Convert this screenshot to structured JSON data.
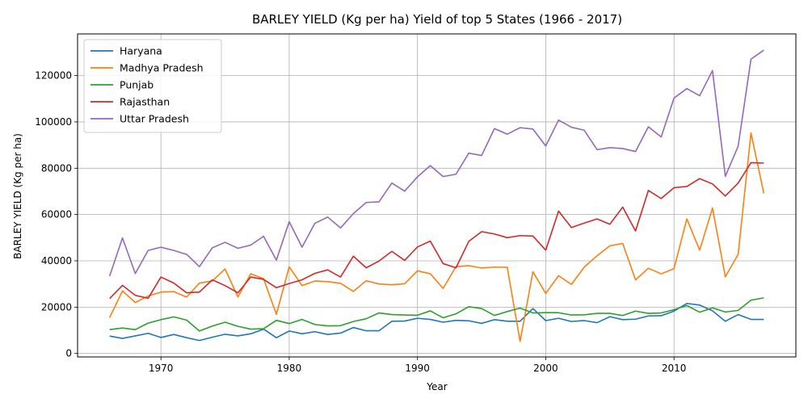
{
  "chart_data": {
    "type": "line",
    "title": "BARLEY YIELD (Kg per ha) Yield of top 5 States (1966 - 2017)",
    "xlabel": "Year",
    "ylabel": "BARLEY YIELD (Kg per ha)",
    "xlim": [
      1963.5,
      2019.5
    ],
    "ylim": [
      -1500,
      138000
    ],
    "xticks": [
      1970,
      1980,
      1990,
      2000,
      2010
    ],
    "xtick_labels": [
      "1970",
      "1980",
      "1990",
      "2000",
      "2010"
    ],
    "yticks": [
      0,
      20000,
      40000,
      60000,
      80000,
      100000,
      120000
    ],
    "ytick_labels": [
      "0",
      "20000",
      "40000",
      "60000",
      "80000",
      "100000",
      "120000"
    ],
    "grid": true,
    "legend_position": "top-left",
    "x": [
      1966,
      1967,
      1968,
      1969,
      1970,
      1971,
      1972,
      1973,
      1974,
      1975,
      1976,
      1977,
      1978,
      1979,
      1980,
      1981,
      1982,
      1983,
      1984,
      1985,
      1986,
      1987,
      1988,
      1989,
      1990,
      1991,
      1992,
      1993,
      1994,
      1995,
      1996,
      1997,
      1998,
      1999,
      2000,
      2001,
      2002,
      2003,
      2004,
      2005,
      2006,
      2007,
      2008,
      2009,
      2010,
      2011,
      2012,
      2013,
      2014,
      2015,
      2016,
      2017
    ],
    "series": [
      {
        "name": "Haryana",
        "color": "#1f77b4",
        "values": [
          7500,
          6500,
          7600,
          8700,
          6900,
          8200,
          6800,
          5600,
          7000,
          8300,
          7600,
          8500,
          10500,
          6800,
          9700,
          8500,
          9400,
          8200,
          8800,
          11200,
          9800,
          9800,
          13900,
          14000,
          15200,
          14700,
          13500,
          14300,
          14100,
          13000,
          14600,
          13900,
          13900,
          19400,
          14200,
          15200,
          13800,
          14200,
          13300,
          15900,
          14600,
          14800,
          16200,
          16300,
          18300,
          21600,
          20900,
          18400,
          13900,
          16800,
          14700,
          14700
        ]
      },
      {
        "name": "Madhya Pradesh",
        "color": "#ff7f0e",
        "values": [
          15500,
          27000,
          22000,
          24800,
          26500,
          26700,
          24300,
          30400,
          31300,
          36500,
          24400,
          34400,
          32300,
          16900,
          37400,
          29300,
          31300,
          31000,
          30300,
          26800,
          31400,
          30000,
          29700,
          30100,
          35700,
          34400,
          28100,
          37500,
          37900,
          36900,
          37300,
          37200,
          5200,
          35300,
          25900,
          33600,
          29800,
          37300,
          42200,
          46500,
          47500,
          31800,
          36800,
          34400,
          36600,
          58100,
          44600,
          62800,
          33100,
          42800,
          95200,
          69200
        ]
      },
      {
        "name": "Punjab",
        "color": "#2ca02c",
        "values": [
          10300,
          11000,
          10300,
          13100,
          14600,
          15800,
          14400,
          9700,
          11800,
          13500,
          11700,
          10500,
          10700,
          14300,
          12900,
          14700,
          12500,
          11900,
          12000,
          13800,
          15000,
          17500,
          16800,
          16600,
          16500,
          18400,
          15400,
          17100,
          20200,
          19400,
          16400,
          18100,
          19600,
          17500,
          17600,
          17600,
          16600,
          16700,
          17300,
          17300,
          16400,
          18300,
          17300,
          17500,
          18900,
          20700,
          17800,
          19700,
          17900,
          18600,
          23000,
          24000
        ]
      },
      {
        "name": "Rajasthan",
        "color": "#d62728",
        "values": [
          23700,
          29400,
          25100,
          23800,
          33000,
          30400,
          26200,
          26500,
          31800,
          29300,
          26200,
          33000,
          32000,
          28400,
          30200,
          31800,
          34600,
          36100,
          33000,
          42000,
          37000,
          39900,
          44100,
          40200,
          46000,
          48500,
          38800,
          37000,
          48400,
          52600,
          51600,
          50000,
          50900,
          50700,
          44600,
          61500,
          54400,
          56300,
          58100,
          55800,
          63200,
          52900,
          70400,
          66900,
          71600,
          72100,
          75500,
          73200,
          68000,
          73600,
          82400,
          82200
        ]
      },
      {
        "name": "Uttar Pradesh",
        "color": "#9467bd",
        "values": [
          33400,
          49900,
          34500,
          44500,
          45900,
          44500,
          42800,
          37500,
          45600,
          48000,
          45400,
          46800,
          50600,
          40300,
          56900,
          45900,
          56200,
          58900,
          54200,
          60400,
          65200,
          65500,
          73600,
          70100,
          76300,
          81100,
          76400,
          77400,
          86500,
          85500,
          97100,
          94700,
          97500,
          96900,
          89600,
          100800,
          97700,
          96400,
          88000,
          88900,
          88500,
          87200,
          97900,
          93500,
          110300,
          114400,
          111300,
          122200,
          76500,
          89500,
          127100,
          131000
        ]
      }
    ]
  }
}
